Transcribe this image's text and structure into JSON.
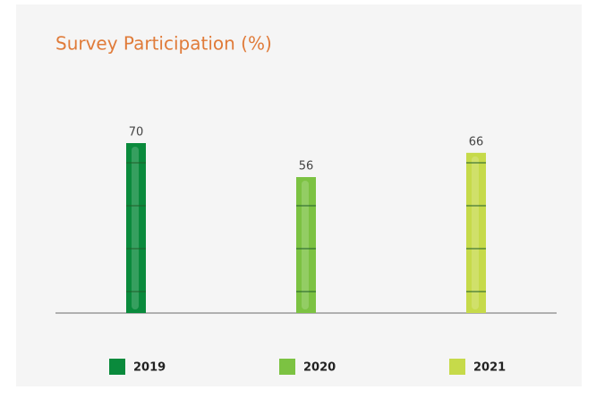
{
  "chart_data": {
    "type": "bar",
    "title": "Survey Participation (%)",
    "categories": [
      "2019",
      "2020",
      "2021"
    ],
    "values": [
      70,
      56,
      66
    ],
    "colors": [
      "#0a8a3c",
      "#7cc242",
      "#c6da4a"
    ]
  }
}
